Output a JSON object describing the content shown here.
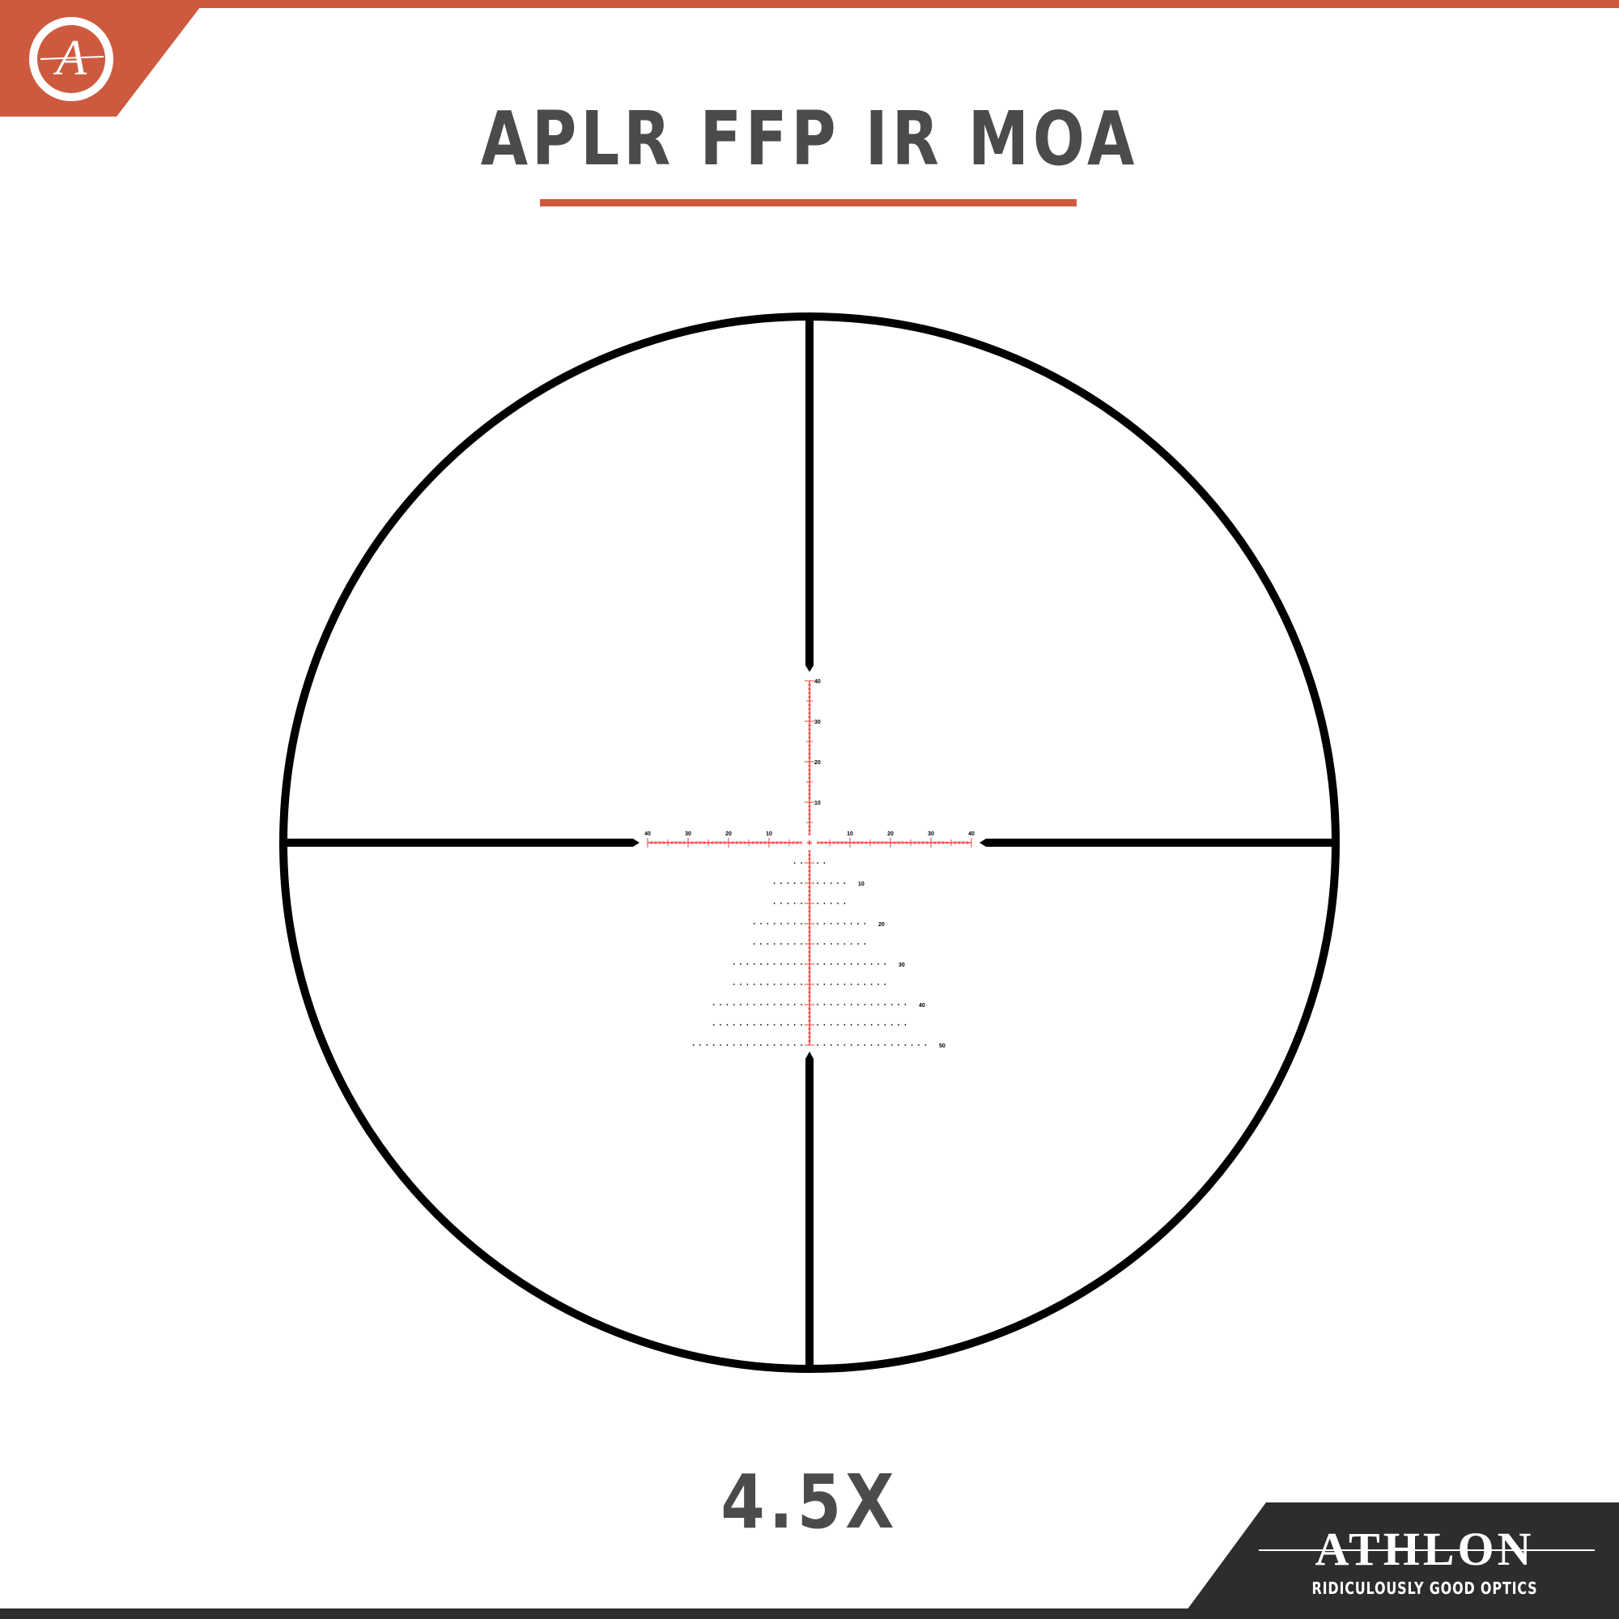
{
  "header": {
    "title": "APLR FFP IR MOA"
  },
  "footer": {
    "magnification": "4.5X",
    "brand": "ATHLON",
    "tagline": "RIDICULOUSLY GOOD OPTICS"
  },
  "logo": {
    "letter": "A"
  },
  "colors": {
    "accent": "#cd5a3f",
    "text": "#4b4b4b",
    "reticle_red": "#ff3b3b",
    "dark": "#2d2d2d"
  },
  "reticle": {
    "horizontal_labels": [
      "40",
      "30",
      "20",
      "10",
      "10",
      "20",
      "30",
      "40"
    ],
    "vertical_labels": [
      "40",
      "30",
      "20",
      "10"
    ],
    "holdover_labels": [
      "10",
      "20",
      "30",
      "40",
      "50"
    ]
  }
}
